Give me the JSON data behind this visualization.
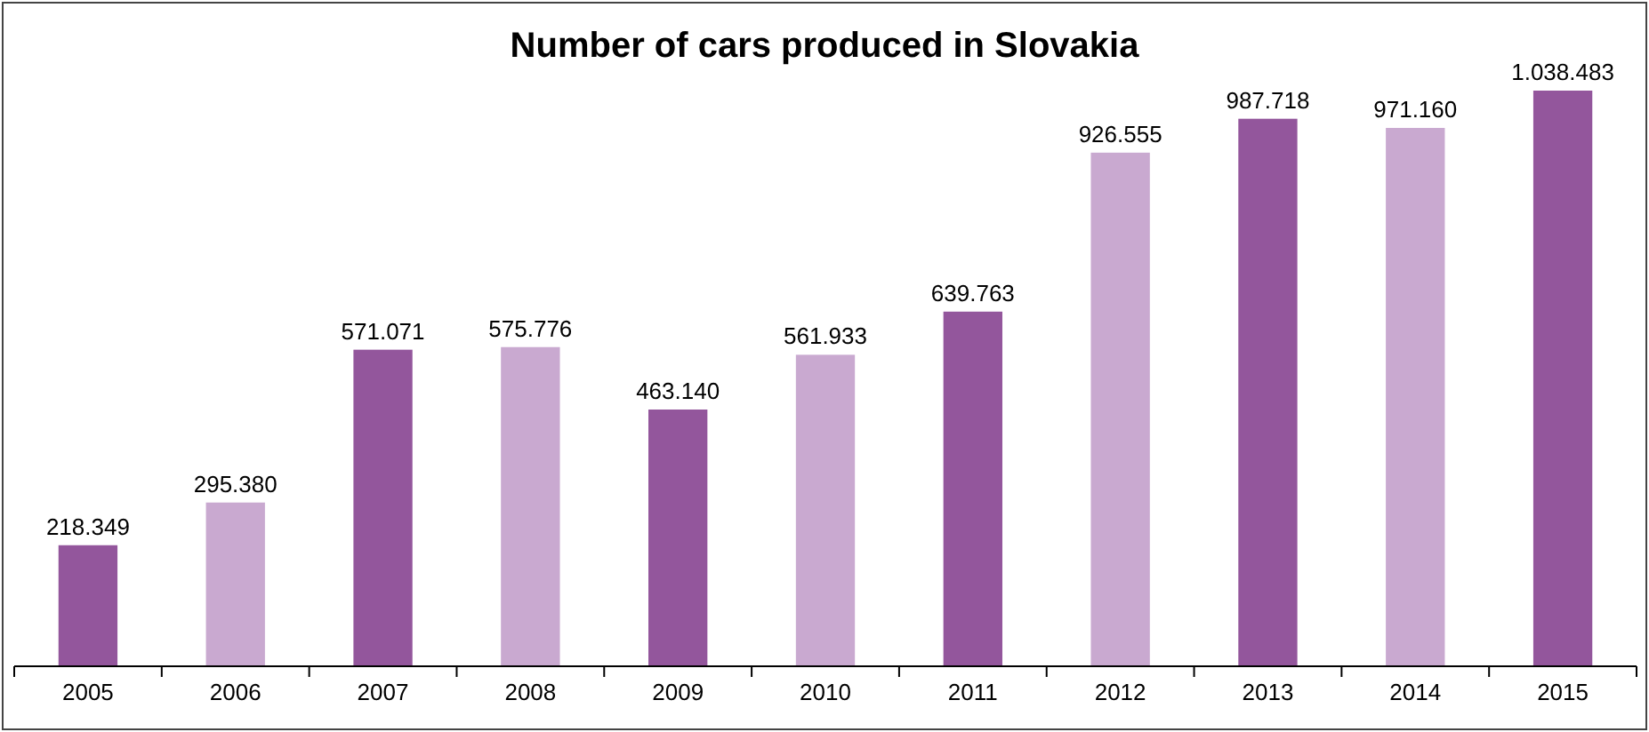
{
  "chart_data": {
    "type": "bar",
    "title": "Number of cars produced in Slovakia",
    "categories": [
      "2005",
      "2006",
      "2007",
      "2008",
      "2009",
      "2010",
      "2011",
      "2012",
      "2013",
      "2014",
      "2015"
    ],
    "values": [
      218349,
      295380,
      571071,
      575776,
      463140,
      561933,
      639763,
      926555,
      987718,
      971160,
      1038483
    ],
    "value_labels": [
      "218.349",
      "295.380",
      "571.071",
      "575.776",
      "463.140",
      "561.933",
      "639.763",
      "926.555",
      "987.718",
      "971.160",
      "1.038.483"
    ],
    "colors": [
      "#93569c",
      "#c9a9d0",
      "#93569c",
      "#c9a9d0",
      "#93569c",
      "#c9a9d0",
      "#93569c",
      "#c9a9d0",
      "#93569c",
      "#c9a9d0",
      "#93569c"
    ]
  }
}
